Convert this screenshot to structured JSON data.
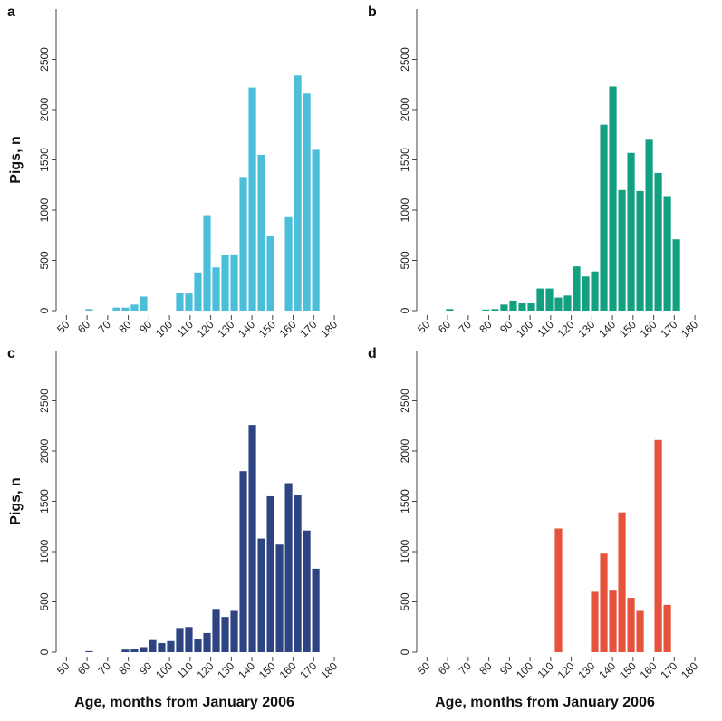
{
  "chart_data": [
    {
      "type": "bar",
      "title": "a",
      "ylabel": "Pigs, n",
      "color": "#4bbfd9",
      "x": [
        52.2,
        56.6,
        61,
        65.4,
        69.8,
        74.2,
        78.6,
        83,
        87.4,
        91.8,
        96.2,
        100.6,
        105,
        109.4,
        113.8,
        118.2,
        122.6,
        127,
        131.4,
        135.8,
        140.2,
        144.6,
        149,
        153.4,
        157.8,
        162.2,
        166.6,
        171
      ],
      "values": [
        0,
        0,
        15,
        0,
        0,
        30,
        30,
        60,
        140,
        0,
        0,
        0,
        180,
        170,
        380,
        950,
        430,
        550,
        560,
        1330,
        2220,
        1550,
        740,
        0,
        930,
        2340,
        2160,
        1600
      ],
      "xlim": [
        45,
        187
      ],
      "xticks": [
        50,
        60,
        70,
        80,
        90,
        100,
        110,
        120,
        130,
        140,
        150,
        160,
        170,
        180
      ],
      "ylim": [
        0,
        3000
      ],
      "yticks": [
        0,
        500,
        1000,
        1500,
        2000,
        2500
      ]
    },
    {
      "type": "bar",
      "title": "b",
      "color": "#12a080",
      "x": [
        52.2,
        56.6,
        61,
        65.4,
        69.8,
        74.2,
        78.6,
        83,
        87.4,
        91.8,
        96.2,
        100.6,
        105,
        109.4,
        113.8,
        118.2,
        122.6,
        127,
        131.4,
        135.8,
        140.2,
        144.6,
        149,
        153.4,
        157.8,
        162.2,
        166.6,
        171
      ],
      "values": [
        0,
        0,
        15,
        0,
        0,
        0,
        10,
        15,
        60,
        100,
        80,
        80,
        220,
        220,
        130,
        150,
        440,
        340,
        390,
        1850,
        2230,
        1200,
        1570,
        1190,
        1700,
        1370,
        1140,
        710
      ],
      "xlim": [
        45,
        187
      ],
      "xticks": [
        50,
        60,
        70,
        80,
        90,
        100,
        110,
        120,
        130,
        140,
        150,
        160,
        170,
        180
      ],
      "ylim": [
        0,
        3000
      ],
      "yticks": [
        0,
        500,
        1000,
        1500,
        2000,
        2500
      ]
    },
    {
      "type": "bar",
      "title": "c",
      "ylabel": "Pigs, n",
      "xlabel": "Age, months from January 2006",
      "color": "#2e4482",
      "x": [
        52.2,
        56.6,
        61,
        65.4,
        69.8,
        74.2,
        78.6,
        83,
        87.4,
        91.8,
        96.2,
        100.6,
        105,
        109.4,
        113.8,
        118.2,
        122.6,
        127,
        131.4,
        135.8,
        140.2,
        144.6,
        149,
        153.4,
        157.8,
        162.2,
        166.6,
        171
      ],
      "values": [
        0,
        0,
        10,
        0,
        0,
        0,
        25,
        30,
        50,
        120,
        90,
        110,
        240,
        250,
        130,
        190,
        430,
        350,
        410,
        1800,
        2260,
        1130,
        1550,
        1070,
        1680,
        1560,
        1210,
        830
      ],
      "xlim": [
        45,
        187
      ],
      "xticks": [
        50,
        60,
        70,
        80,
        90,
        100,
        110,
        120,
        130,
        140,
        150,
        160,
        170,
        180
      ],
      "ylim": [
        0,
        3000
      ],
      "yticks": [
        0,
        500,
        1000,
        1500,
        2000,
        2500
      ]
    },
    {
      "type": "bar",
      "title": "d",
      "xlabel": "Age, months from January 2006",
      "color": "#e5533d",
      "x": [
        52.2,
        56.6,
        61,
        65.4,
        69.8,
        74.2,
        78.6,
        83,
        87.4,
        91.8,
        96.2,
        100.6,
        105,
        109.4,
        113.8,
        118.2,
        122.6,
        127,
        131.4,
        135.8,
        140.2,
        144.6,
        149,
        153.4,
        157.8,
        162.2,
        166.6,
        171
      ],
      "values": [
        0,
        0,
        0,
        0,
        0,
        0,
        0,
        0,
        0,
        0,
        0,
        0,
        0,
        0,
        1230,
        0,
        0,
        0,
        600,
        980,
        620,
        1390,
        540,
        410,
        0,
        2110,
        470,
        0
      ],
      "xlim": [
        45,
        187
      ],
      "xticks": [
        50,
        60,
        70,
        80,
        90,
        100,
        110,
        120,
        130,
        140,
        150,
        160,
        170,
        180
      ],
      "ylim": [
        0,
        3000
      ],
      "yticks": [
        0,
        500,
        1000,
        1500,
        2000,
        2500
      ]
    }
  ]
}
